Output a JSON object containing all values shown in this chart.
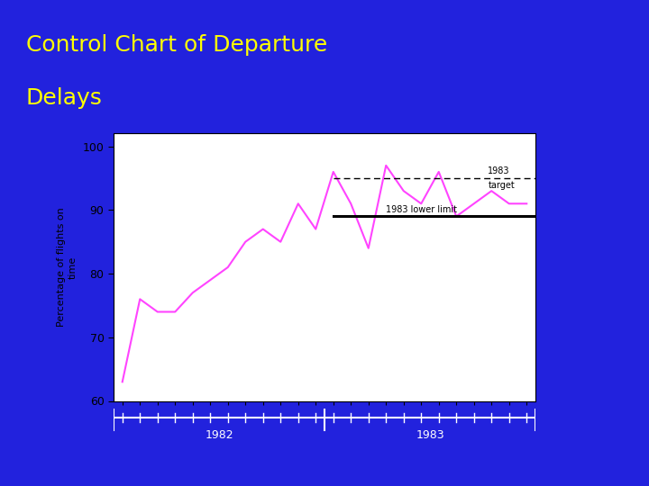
{
  "title_line1": "Control Chart of Departure",
  "title_line2": "Delays",
  "title_color": "#FFFF00",
  "bg_color": "#2222DD",
  "plot_bg_color": "#FFFFFF",
  "magenta_line_color": "#FF44FF",
  "ylabel": "Percentage of flights on\ntime",
  "ylabel_color": "#000000",
  "ylim": [
    60,
    102
  ],
  "yticks": [
    60,
    70,
    80,
    90,
    100
  ],
  "separator_line_color": "#FF44FF",
  "target_line_value": 95,
  "target_label_1": "1983",
  "target_label_2": "target",
  "lower_limit_value": 89,
  "lower_limit_label": "1983 lower limit",
  "data_x": [
    1,
    2,
    3,
    4,
    5,
    6,
    7,
    8,
    9,
    10,
    11,
    12,
    13,
    14,
    15,
    16,
    17,
    18,
    19,
    20,
    21,
    22,
    23,
    24
  ],
  "data_y": [
    63,
    76,
    74,
    74,
    77,
    79,
    81,
    85,
    87,
    85,
    91,
    87,
    96,
    91,
    84,
    97,
    93,
    91,
    96,
    89,
    91,
    93,
    91,
    91
  ],
  "fig_width": 7.2,
  "fig_height": 5.4,
  "dpi": 100
}
